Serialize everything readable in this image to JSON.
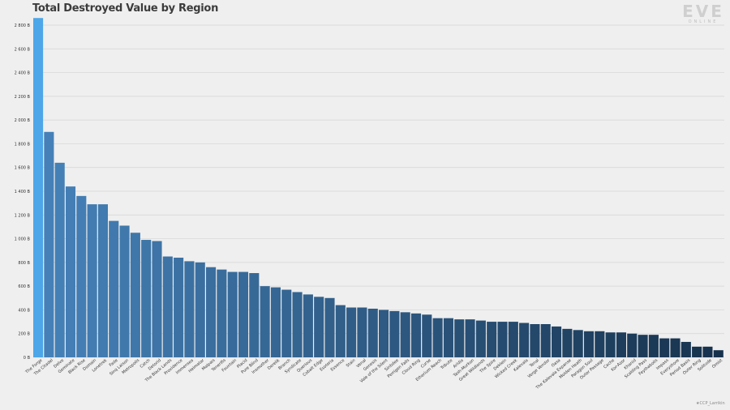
{
  "logo": {
    "wordmark": "EVE",
    "sub": "ONLINE"
  },
  "credit": "★CCP_Larrikin",
  "colors": {
    "highlight": "#4da6e8",
    "bar_dark": "#17324d",
    "bar_light": "#4581b8",
    "grid": "#d4d4d4",
    "background": "#efefef"
  },
  "chart_data": {
    "type": "bar",
    "title": "Total Destroyed Value by Region",
    "xlabel": "",
    "ylabel": "",
    "ylim": [
      0,
      2800
    ],
    "yticks": [
      0,
      200,
      400,
      600,
      800,
      1000,
      1200,
      1400,
      1600,
      1800,
      2000,
      2200,
      2400,
      2600,
      2800
    ],
    "ytick_labels": [
      "0 B",
      "200 B",
      "400 B",
      "600 B",
      "800 B",
      "1 000 B",
      "1 200 B",
      "1 400 B",
      "1 600 B",
      "1 800 B",
      "2 000 B",
      "2 200 B",
      "2 400 B",
      "2 600 B",
      "2 800 B"
    ],
    "grid": true,
    "categories": [
      "The Forge",
      "The Citadel",
      "Delve",
      "Geminate",
      "Black Rise",
      "Domain",
      "Lonetrek",
      "Fade",
      "Sinq Laison",
      "Metropolis",
      "Catch",
      "Detorid",
      "The Bleak Lands",
      "Providence",
      "Immensea",
      "Heimatar",
      "Malpais",
      "Tenerifis",
      "Fountain",
      "Placid",
      "Pure Blind",
      "Insmother",
      "Derelik",
      "Branch",
      "Syndicate",
      "Querious",
      "Cobalt Edge",
      "Esoteria",
      "Essence",
      "Stain",
      "Venal",
      "Genesis",
      "Vale of the Silent",
      "Solitude",
      "Perrigen Falls",
      "Cloud Ring",
      "Curse",
      "Etherium Reach",
      "Tribute",
      "Aridia",
      "Tash-Murkon",
      "Great Wildlands",
      "The Spire",
      "Deklein",
      "Wicked Creek",
      "Kalevala Expanse",
      "Tenal",
      "Verge Vendor",
      "Oasa",
      "The Kalevala Expanse",
      "Molden Heath",
      "Paragon Soul",
      "Outer Passage",
      "Cache",
      "Kor-Azor",
      "Khanid",
      "Scalding Pass",
      "Feythabolis",
      "Impass",
      "Everyshore",
      "Period Basis",
      "Outer Ring",
      "Solitude",
      "Omist"
    ],
    "display_categories": [
      "The Forge",
      "The Citadel",
      "Delve",
      "Geminate",
      "Black Rise",
      "Domain",
      "Lonetrek",
      "Fade",
      "Sinq Laison",
      "Metropolis",
      "Catch",
      "Detorid",
      "The Black Lands",
      "Providence",
      "Immensea",
      "Heimatar",
      "Malpais",
      "Tenerifis",
      "Fountain",
      "Placid",
      "Pure Blind",
      "Insmother",
      "Derelik",
      "Branch",
      "Syndicate",
      "Querious",
      "Cobalt Edge",
      "Esoteria",
      "Essence",
      "Stain",
      "Venal",
      "Genesis",
      "Vale of the Silent",
      "Sinbdee",
      "Perrigen Falls",
      "Cloud Ring",
      "Curse",
      "Etherium Reach",
      "Tribute",
      "Aridia",
      "Tash-Murkon",
      "Great Wildlands",
      "The Spire",
      "Deklein",
      "Wicked Creek",
      "Kalevala",
      "Tenal",
      "Verge Vendor",
      "Oasa",
      "The Kalevala Expanse",
      "Molden Heath",
      "Paragon Soul",
      "Outer Passage",
      "Cache",
      "Kor-Azor",
      "Khanid",
      "Scalding Pass",
      "Feythabolis",
      "Impass",
      "Everyshore",
      "Period Basis",
      "Outer Ring",
      "Solitude",
      "Omist"
    ],
    "values": [
      2870,
      1900,
      1640,
      1440,
      1360,
      1290,
      1290,
      1150,
      1110,
      1050,
      990,
      980,
      850,
      840,
      810,
      800,
      760,
      740,
      720,
      720,
      710,
      600,
      590,
      570,
      550,
      530,
      510,
      500,
      440,
      420,
      420,
      410,
      400,
      390,
      380,
      370,
      360,
      330,
      330,
      320,
      320,
      310,
      300,
      300,
      300,
      290,
      280,
      280,
      260,
      240,
      230,
      220,
      220,
      210,
      210,
      200,
      190,
      190,
      160,
      160,
      130,
      90,
      90,
      60
    ]
  }
}
